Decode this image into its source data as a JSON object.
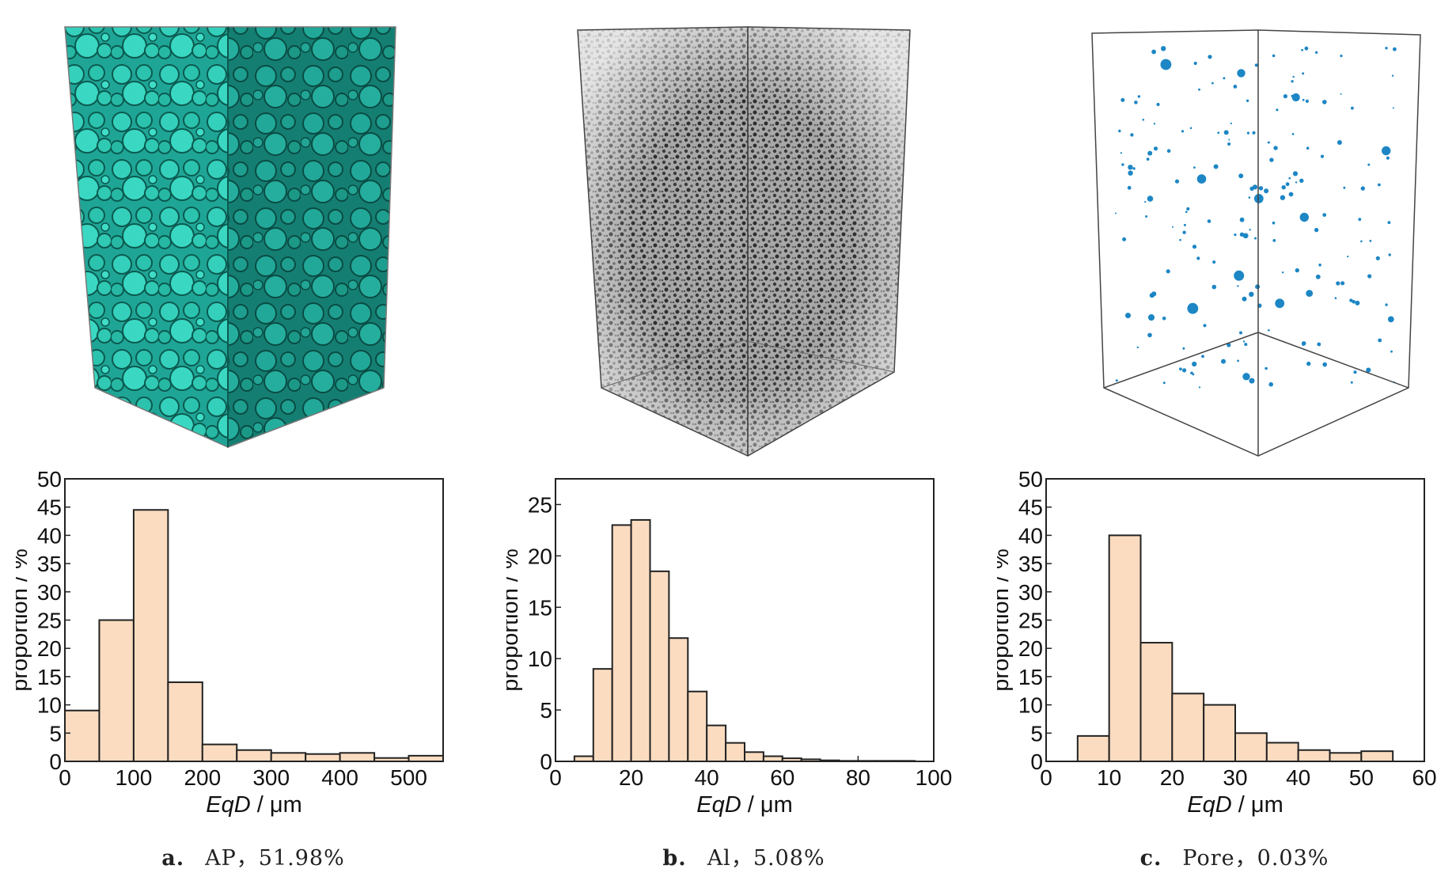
{
  "panels": [
    {
      "letter": "a.",
      "caption": "AP，51.98%",
      "render_color": "#2dc7b2",
      "render_icon": "ap-particle-volume-render",
      "chart_data": {
        "type": "bar",
        "bins": [
          [
            0,
            50
          ],
          [
            50,
            100
          ],
          [
            100,
            150
          ],
          [
            150,
            200
          ],
          [
            200,
            250
          ],
          [
            250,
            300
          ],
          [
            300,
            350
          ],
          [
            350,
            400
          ],
          [
            400,
            450
          ],
          [
            450,
            500
          ],
          [
            500,
            550
          ]
        ],
        "values": [
          9,
          25,
          44.5,
          14,
          3,
          2,
          1.5,
          1.3,
          1.5,
          0.6,
          1
        ],
        "xlim": [
          0,
          550
        ],
        "ylim": [
          0,
          50
        ],
        "xticks": [
          0,
          100,
          200,
          300,
          400,
          500
        ],
        "yticks": [
          0,
          5,
          10,
          15,
          20,
          25,
          30,
          35,
          40,
          45,
          50
        ],
        "xlabel_italic": "EqD",
        "xlabel_unit": " / μm",
        "ylabel": "proportion / %",
        "bar_color": "#fbdcc0"
      }
    },
    {
      "letter": "b.",
      "caption": "Al，5.08%",
      "render_color": "#555555",
      "render_icon": "al-particle-volume-render",
      "chart_data": {
        "type": "bar",
        "bins": [
          [
            5,
            10
          ],
          [
            10,
            15
          ],
          [
            15,
            20
          ],
          [
            20,
            25
          ],
          [
            25,
            30
          ],
          [
            30,
            35
          ],
          [
            35,
            40
          ],
          [
            40,
            45
          ],
          [
            45,
            50
          ],
          [
            50,
            55
          ],
          [
            55,
            60
          ],
          [
            60,
            65
          ],
          [
            65,
            70
          ],
          [
            70,
            75
          ],
          [
            75,
            80
          ],
          [
            80,
            85
          ],
          [
            85,
            90
          ],
          [
            90,
            95
          ]
        ],
        "values": [
          0.5,
          9,
          23,
          23.5,
          18.5,
          12,
          6.8,
          3.5,
          1.8,
          0.9,
          0.5,
          0.3,
          0.2,
          0.1,
          0.05,
          0.05,
          0.05,
          0.05
        ],
        "xlim": [
          0,
          100
        ],
        "ylim": [
          0,
          27.5
        ],
        "xticks": [
          0,
          20,
          40,
          60,
          80,
          100
        ],
        "yticks": [
          0,
          5,
          10,
          15,
          20,
          25
        ],
        "xlabel_italic": "EqD",
        "xlabel_unit": " / μm",
        "ylabel": "proportion / %",
        "bar_color": "#fbdcc0"
      }
    },
    {
      "letter": "c.",
      "caption": "Pore，0.03%",
      "render_color": "#1d86c4",
      "render_icon": "pore-volume-render",
      "chart_data": {
        "type": "bar",
        "bins": [
          [
            5,
            10
          ],
          [
            10,
            15
          ],
          [
            15,
            20
          ],
          [
            20,
            25
          ],
          [
            25,
            30
          ],
          [
            30,
            35
          ],
          [
            35,
            40
          ],
          [
            40,
            45
          ],
          [
            45,
            50
          ],
          [
            50,
            55
          ]
        ],
        "values": [
          4.5,
          40,
          21,
          12,
          10,
          5,
          3.3,
          2,
          1.5,
          1.8
        ],
        "xlim": [
          0,
          60
        ],
        "ylim": [
          0,
          50
        ],
        "xticks": [
          0,
          10,
          20,
          30,
          40,
          50,
          60
        ],
        "yticks": [
          0,
          5,
          10,
          15,
          20,
          25,
          30,
          35,
          40,
          45,
          50
        ],
        "xlabel_italic": "EqD",
        "xlabel_unit": " / μm",
        "ylabel": "proportion / %",
        "bar_color": "#fbdcc0"
      }
    }
  ]
}
